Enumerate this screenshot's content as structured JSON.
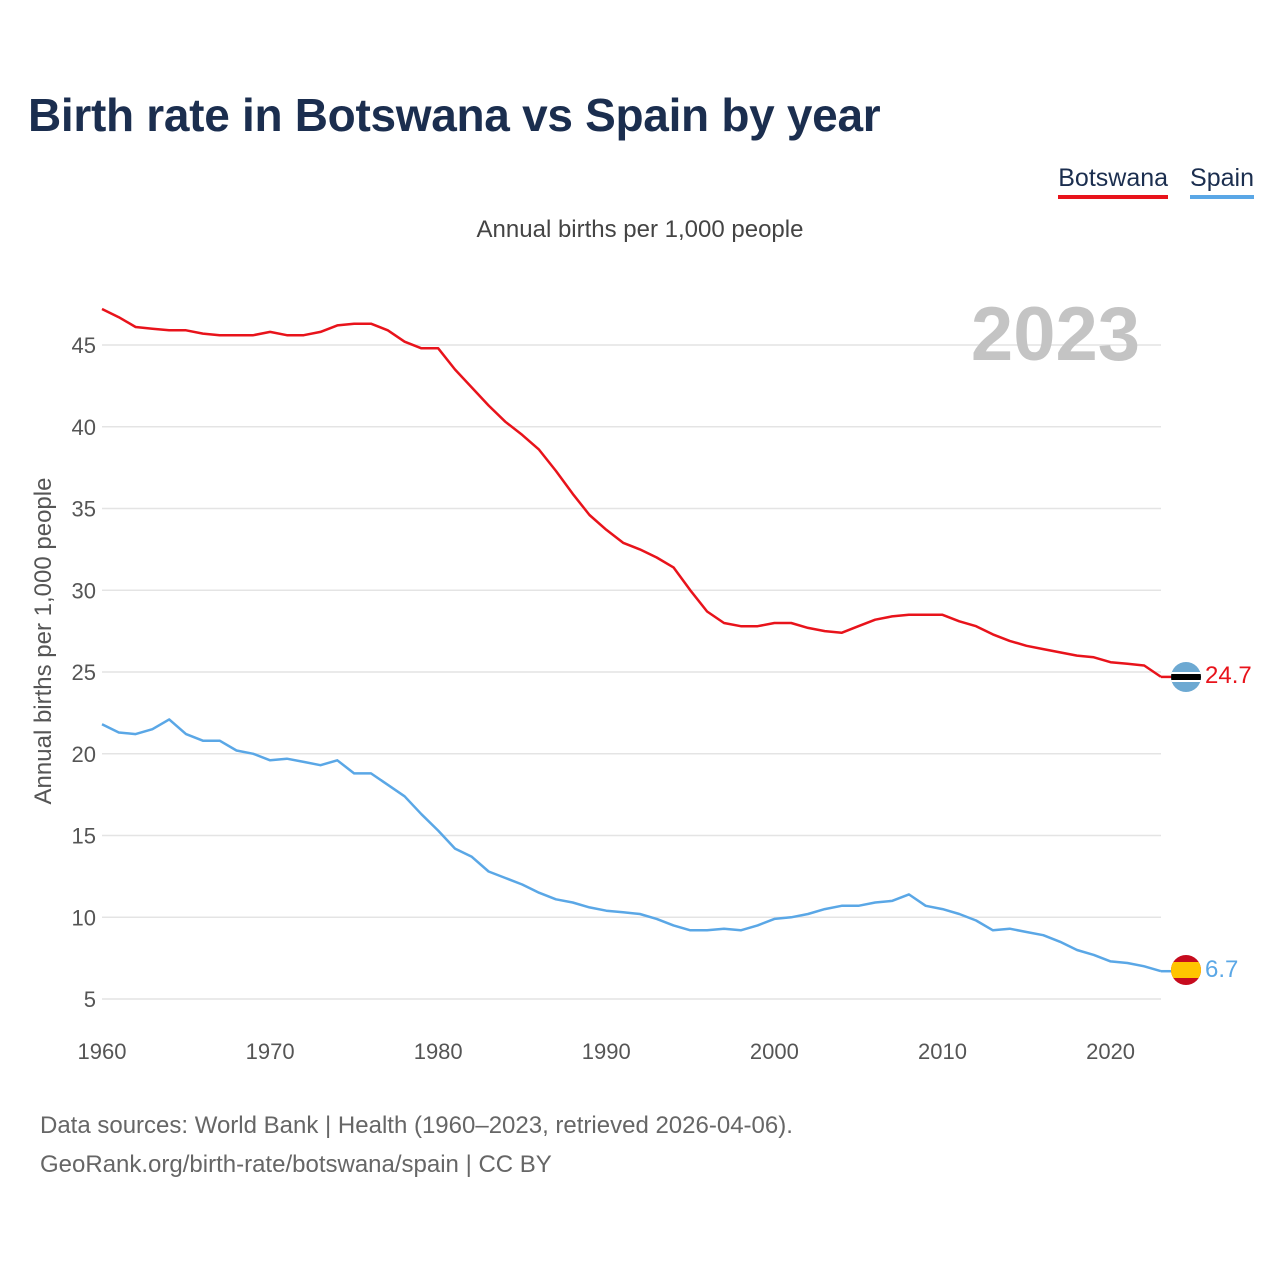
{
  "title": "Birth rate in Botswana vs Spain by year",
  "subtitle": "Annual births per 1,000 people",
  "legend": [
    "Botswana",
    "Spain"
  ],
  "footer": {
    "line1": "Data sources: World Bank | Health (1960–2023, retrieved 2026-04-06).",
    "line2": "GeoRank.org/birth-rate/botswana/spain | CC BY"
  },
  "colors": {
    "botswana": "#e8131b",
    "spain": "#5aa7e6",
    "title": "#1b2e4f"
  },
  "chart_data": {
    "type": "line",
    "title": "Birth rate in Botswana vs Spain by year",
    "subtitle": "Annual births per 1,000 people",
    "xlabel": "",
    "ylabel": "Annual births per 1,000 people",
    "xlim": [
      1960,
      2023
    ],
    "ylim": [
      3.5,
      48
    ],
    "xticks": [
      1960,
      1970,
      1980,
      1990,
      2000,
      2010,
      2020
    ],
    "yticks": [
      5,
      10,
      15,
      20,
      25,
      30,
      35,
      40,
      45
    ],
    "grid": true,
    "legend_position": "top-right",
    "year_label": "2023",
    "x": [
      1960,
      1961,
      1962,
      1963,
      1964,
      1965,
      1966,
      1967,
      1968,
      1969,
      1970,
      1971,
      1972,
      1973,
      1974,
      1975,
      1976,
      1977,
      1978,
      1979,
      1980,
      1981,
      1982,
      1983,
      1984,
      1985,
      1986,
      1987,
      1988,
      1989,
      1990,
      1991,
      1992,
      1993,
      1994,
      1995,
      1996,
      1997,
      1998,
      1999,
      2000,
      2001,
      2002,
      2003,
      2004,
      2005,
      2006,
      2007,
      2008,
      2009,
      2010,
      2011,
      2012,
      2013,
      2014,
      2015,
      2016,
      2017,
      2018,
      2019,
      2020,
      2021,
      2022,
      2023
    ],
    "series": [
      {
        "name": "Botswana",
        "color": "#e8131b",
        "end_label": "24.7",
        "values": [
          47.2,
          46.7,
          46.1,
          46.0,
          45.9,
          45.9,
          45.7,
          45.6,
          45.6,
          45.6,
          45.8,
          45.6,
          45.6,
          45.8,
          46.2,
          46.3,
          46.3,
          45.9,
          45.2,
          44.8,
          44.8,
          43.5,
          42.4,
          41.3,
          40.3,
          39.5,
          38.6,
          37.3,
          35.9,
          34.6,
          33.7,
          32.9,
          32.5,
          32.0,
          31.4,
          30.0,
          28.7,
          28.0,
          27.8,
          27.8,
          28.0,
          28.0,
          27.7,
          27.5,
          27.4,
          27.8,
          28.2,
          28.4,
          28.5,
          28.5,
          28.5,
          28.1,
          27.8,
          27.3,
          26.9,
          26.6,
          26.4,
          26.2,
          26.0,
          25.9,
          25.6,
          25.5,
          25.4,
          24.7
        ]
      },
      {
        "name": "Spain",
        "color": "#5aa7e6",
        "end_label": "6.7",
        "values": [
          21.8,
          21.3,
          21.2,
          21.5,
          22.1,
          21.2,
          20.8,
          20.8,
          20.2,
          20.0,
          19.6,
          19.7,
          19.5,
          19.3,
          19.6,
          18.8,
          18.8,
          18.1,
          17.4,
          16.3,
          15.3,
          14.2,
          13.7,
          12.8,
          12.4,
          12.0,
          11.5,
          11.1,
          10.9,
          10.6,
          10.4,
          10.3,
          10.2,
          9.9,
          9.5,
          9.2,
          9.2,
          9.3,
          9.2,
          9.5,
          9.9,
          10.0,
          10.2,
          10.5,
          10.7,
          10.7,
          10.9,
          11.0,
          11.4,
          10.7,
          10.5,
          10.2,
          9.8,
          9.2,
          9.3,
          9.1,
          8.9,
          8.5,
          8.0,
          7.7,
          7.3,
          7.2,
          7.0,
          6.7
        ]
      }
    ]
  }
}
